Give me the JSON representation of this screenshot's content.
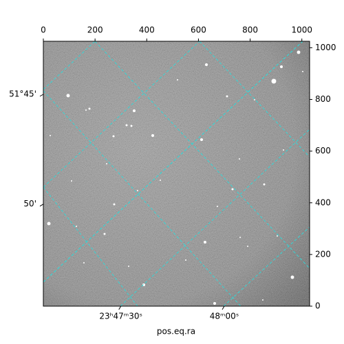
{
  "chart_data": {
    "type": "image",
    "xlabel": "pos.eq.ra",
    "xlim": [
      0,
      1030
    ],
    "ylim": [
      0,
      1025
    ],
    "xticks": [
      0,
      200,
      400,
      600,
      800,
      1000
    ],
    "yticks": [
      0,
      200,
      400,
      600,
      800,
      1000
    ],
    "ra_ticks": [
      {
        "value": 300,
        "label": "23ʰ47ᵐ30ˢ"
      },
      {
        "value": 700,
        "label": "48ᵐ00ˢ"
      }
    ],
    "dec_ticks": [
      {
        "value": 820,
        "label": "51°45'"
      },
      {
        "value": 395,
        "label": "50'"
      }
    ],
    "grid_color": "#33d6d6"
  }
}
